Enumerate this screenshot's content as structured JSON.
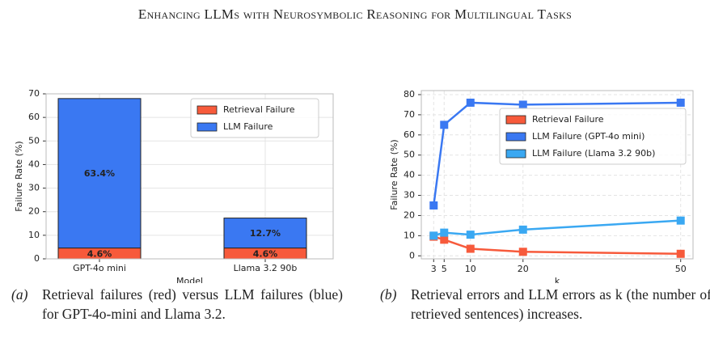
{
  "header": {
    "title": "Enhancing LLMs with Neurosymbolic Reasoning for Multilingual Tasks"
  },
  "chart_data": [
    {
      "type": "stacked-bar",
      "xlabel": "Model",
      "ylabel": "Failure Rate (%)",
      "categories": [
        "GPT-4o mini",
        "Llama 3.2 90b"
      ],
      "series": [
        {
          "name": "Retrieval Failure",
          "color": "#f75a3b",
          "values": [
            4.6,
            4.6
          ],
          "value_labels": [
            "4.6%",
            "4.6%"
          ]
        },
        {
          "name": "LLM Failure",
          "color": "#3a78f2",
          "values": [
            63.4,
            12.7
          ],
          "value_labels": [
            "63.4%",
            "12.7%"
          ]
        }
      ],
      "ylim": [
        0,
        70
      ],
      "yticks": [
        0,
        10,
        20,
        30,
        40,
        50,
        60,
        70
      ],
      "grid": true,
      "legend": "upper right"
    },
    {
      "type": "line",
      "xlabel": "k",
      "ylabel": "Failure Rate (%)",
      "x": [
        3,
        5,
        10,
        20,
        50
      ],
      "series": [
        {
          "name": "Retrieval Failure",
          "color": "#f75a3b",
          "values": [
            9.5,
            8,
            3.5,
            2,
            1
          ]
        },
        {
          "name": "LLM Failure (GPT-4o mini)",
          "color": "#3a78f2",
          "values": [
            25,
            65,
            76,
            75,
            76
          ]
        },
        {
          "name": "LLM Failure (Llama 3.2 90b)",
          "color": "#3aa8f2",
          "values": [
            10,
            11.5,
            10.5,
            13,
            17.5
          ]
        }
      ],
      "xlim": [
        0.65,
        52.35
      ],
      "xticks": [
        3,
        5,
        10,
        20,
        50
      ],
      "ylim": [
        -1.5,
        82
      ],
      "yticks": [
        0,
        10,
        20,
        30,
        40,
        50,
        60,
        70,
        80
      ],
      "grid": true,
      "legend": "upper right"
    }
  ],
  "captions": [
    {
      "label": "(a)",
      "text": "Retrieval failures (red) versus LLM failures (blue) for GPT-4o-mini and Llama 3.2."
    },
    {
      "label": "(b)",
      "text": "Retrieval errors and LLM errors as k (the number of retrieved sentences) increases."
    }
  ]
}
